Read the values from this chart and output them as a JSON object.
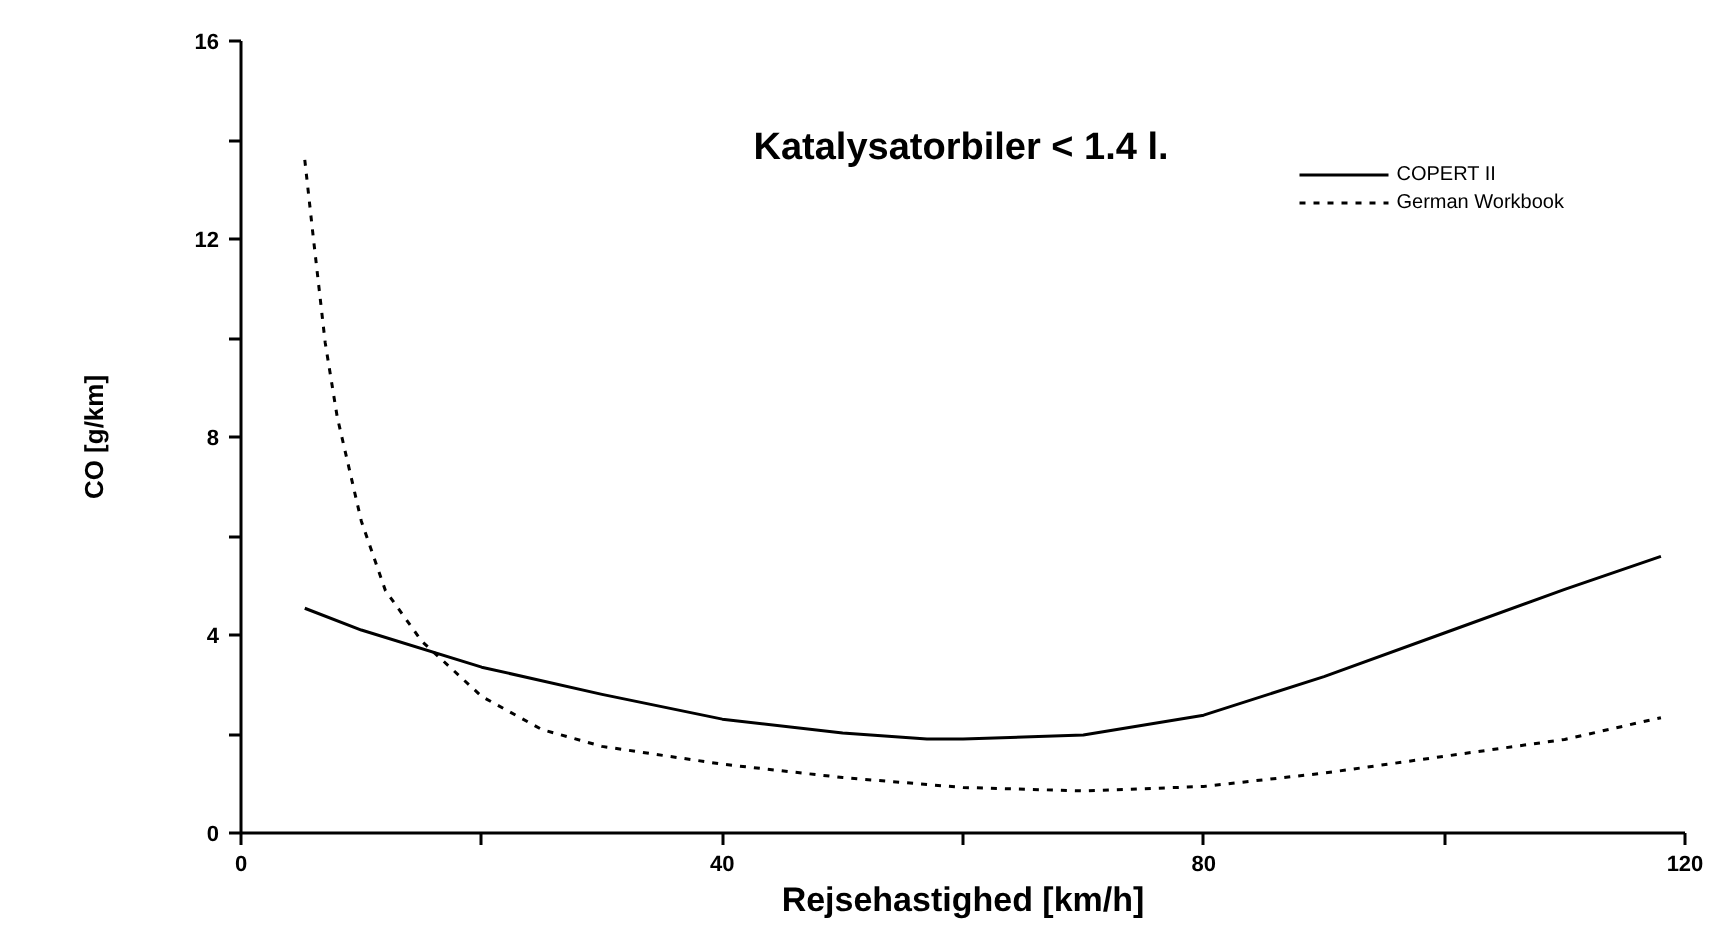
{
  "chart_data": {
    "type": "line",
    "title": "Katalysatorbiler < 1.4 l.",
    "xlabel": "Rejsehastighed [km/h]",
    "ylabel": "CO [g/km]",
    "xlim": [
      0,
      120
    ],
    "ylim": [
      0,
      16
    ],
    "xticks": [
      0,
      {
        "value": 20,
        "label": null
      },
      40,
      {
        "value": 60,
        "label": null
      },
      80,
      {
        "value": 100,
        "label": null
      },
      120
    ],
    "yticks": [
      0,
      {
        "value": 2,
        "label": null
      },
      4,
      {
        "value": 6,
        "label": null
      },
      8,
      {
        "value": 10,
        "label": null
      },
      12,
      {
        "value": 14,
        "label": null
      },
      16
    ],
    "grid": false,
    "legend": "top right",
    "marker": "none",
    "series": [
      {
        "name": "COPERT II",
        "color": "#000000",
        "line_style": "solid",
        "x": [
          5.3,
          10,
          20,
          30,
          40,
          50,
          57,
          60,
          70,
          80,
          90,
          100,
          110,
          118
        ],
        "values": [
          4.54,
          4.1,
          3.35,
          2.8,
          2.3,
          2.02,
          1.9,
          1.9,
          1.98,
          2.38,
          3.16,
          4.04,
          4.92,
          5.59
        ]
      },
      {
        "name": "German Workbook",
        "color": "#000000",
        "line_style": "dashed",
        "x": [
          5.3,
          6,
          7,
          8,
          10,
          12,
          15,
          20,
          25,
          30,
          40,
          50,
          60,
          70,
          80,
          90,
          100,
          110,
          118
        ],
        "values": [
          13.6,
          12.05,
          9.9,
          8.4,
          6.3,
          4.9,
          3.88,
          2.76,
          2.09,
          1.75,
          1.39,
          1.12,
          0.92,
          0.85,
          0.94,
          1.21,
          1.55,
          1.89,
          2.33
        ]
      }
    ]
  }
}
